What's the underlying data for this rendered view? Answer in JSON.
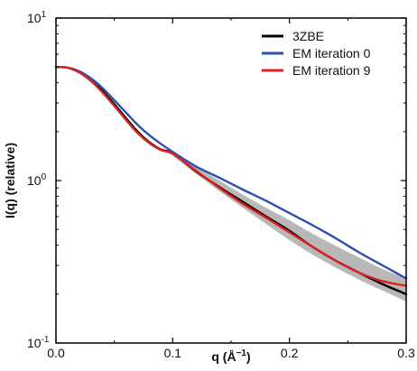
{
  "chart_data": {
    "type": "line",
    "xlabel_main": "q (Å",
    "xlabel_sup": "−1",
    "xlabel_end": ")",
    "ylabel": "I(q) (relative)",
    "xlim": [
      0,
      0.3
    ],
    "ylim": [
      0.1,
      10
    ],
    "y_scale": "log",
    "x_ticks": [
      {
        "value": 0.0,
        "label": "0.0"
      },
      {
        "value": 0.1,
        "label": "0.1"
      },
      {
        "value": 0.2,
        "label": "0.2"
      },
      {
        "value": 0.3,
        "label": "0.3"
      }
    ],
    "y_ticks": [
      {
        "value": 0.1,
        "base": "10",
        "exp": "-1"
      },
      {
        "value": 1,
        "base": "10",
        "exp": "0"
      },
      {
        "value": 10,
        "base": "10",
        "exp": "1"
      }
    ],
    "legend_position": "top-right",
    "band": {
      "color": "#b8b8b8",
      "x": [
        0.1,
        0.12,
        0.14,
        0.16,
        0.18,
        0.2,
        0.22,
        0.24,
        0.26,
        0.28,
        0.3
      ],
      "lower": [
        1.42,
        1.1,
        0.86,
        0.68,
        0.54,
        0.43,
        0.35,
        0.29,
        0.245,
        0.21,
        0.18
      ],
      "upper": [
        1.52,
        1.22,
        1.0,
        0.82,
        0.68,
        0.57,
        0.47,
        0.395,
        0.335,
        0.285,
        0.25
      ]
    },
    "series": [
      {
        "name": "3ZBE",
        "color": "#000000",
        "x": [
          0.0,
          0.01,
          0.02,
          0.03,
          0.04,
          0.05,
          0.06,
          0.07,
          0.08,
          0.09,
          0.1,
          0.12,
          0.14,
          0.16,
          0.18,
          0.2,
          0.22,
          0.24,
          0.26,
          0.28,
          0.3
        ],
        "y": [
          5.0,
          4.95,
          4.65,
          4.15,
          3.55,
          2.95,
          2.42,
          2.0,
          1.72,
          1.55,
          1.47,
          1.14,
          0.91,
          0.74,
          0.6,
          0.49,
          0.39,
          0.32,
          0.27,
          0.23,
          0.2
        ]
      },
      {
        "name": "EM iteration 0",
        "color": "#2f4fb0",
        "x": [
          0.0,
          0.01,
          0.02,
          0.03,
          0.04,
          0.05,
          0.06,
          0.07,
          0.08,
          0.09,
          0.1,
          0.12,
          0.14,
          0.16,
          0.18,
          0.2,
          0.22,
          0.24,
          0.26,
          0.28,
          0.3
        ],
        "y": [
          5.0,
          4.95,
          4.7,
          4.25,
          3.7,
          3.12,
          2.62,
          2.2,
          1.9,
          1.68,
          1.5,
          1.22,
          1.04,
          0.88,
          0.75,
          0.63,
          0.53,
          0.44,
          0.36,
          0.3,
          0.25
        ]
      },
      {
        "name": "EM iteration 9",
        "color": "#e02020",
        "x": [
          0.0,
          0.01,
          0.02,
          0.03,
          0.04,
          0.05,
          0.06,
          0.07,
          0.08,
          0.09,
          0.1,
          0.12,
          0.14,
          0.16,
          0.18,
          0.2,
          0.22,
          0.24,
          0.26,
          0.28,
          0.3
        ],
        "y": [
          5.0,
          4.95,
          4.62,
          4.1,
          3.48,
          2.88,
          2.36,
          1.96,
          1.7,
          1.54,
          1.46,
          1.15,
          0.9,
          0.72,
          0.59,
          0.48,
          0.39,
          0.32,
          0.27,
          0.24,
          0.225
        ]
      }
    ]
  }
}
